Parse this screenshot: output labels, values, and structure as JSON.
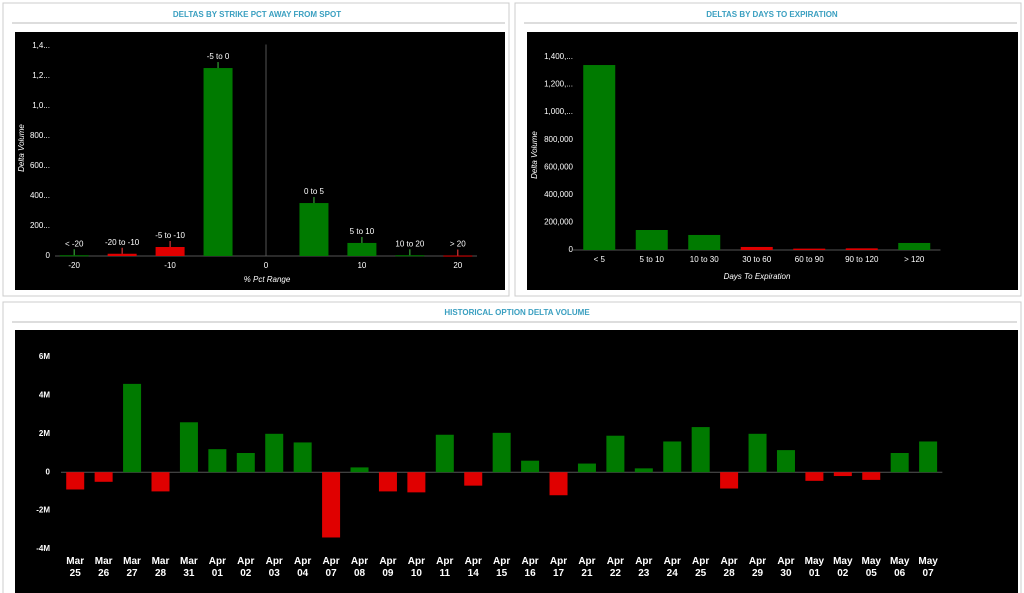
{
  "chart_data": [
    {
      "type": "bar",
      "title": "DELTAS BY STRIKE PCT AWAY FROM SPOT",
      "x_label": "% Pct Range",
      "y_label": "Delta Volume",
      "categories": [
        "< -20",
        "-20 to -10",
        "-5 to -10",
        "-5 to 0",
        "0 to 5",
        "5 to 10",
        "10 to 20",
        "> 20"
      ],
      "x": [
        -20,
        -15,
        -10,
        -5,
        5,
        10,
        15,
        20
      ],
      "values": [
        5000,
        15000,
        60000,
        1253000,
        353000,
        87000,
        5000,
        3000
      ],
      "colors": [
        "#007a00",
        "#e00000",
        "#e00000",
        "#007a00",
        "#007a00",
        "#007a00",
        "#007a00",
        "#e00000"
      ],
      "xlim": [
        -22,
        22
      ],
      "xticks": [
        -20,
        -10,
        0,
        10,
        20
      ],
      "ylim": [
        0,
        1450000
      ],
      "yticks": [
        0,
        {
          "value": 200000,
          "label": "200..."
        },
        {
          "value": 400000,
          "label": "400..."
        },
        {
          "value": 600000,
          "label": "600..."
        },
        {
          "value": 800000,
          "label": "800..."
        },
        {
          "value": 1000000,
          "label": "1,0..."
        },
        {
          "value": 1200000,
          "label": "1,2..."
        },
        {
          "value": 1400000,
          "label": "1,4..."
        }
      ]
    },
    {
      "type": "bar",
      "title": "DELTAS BY DAYS TO EXPIRATION",
      "x_label": "Days To Expiration",
      "y_label": "Delta Volume",
      "categories": [
        "< 5",
        "5 to 10",
        "10 to 30",
        "30 to 60",
        "60 to 90",
        "90 to 120",
        "> 120"
      ],
      "values": [
        1341000,
        145000,
        109000,
        22000,
        10000,
        12000,
        51000
      ],
      "colors": [
        "#007a00",
        "#007a00",
        "#007a00",
        "#e00000",
        "#e00000",
        "#e00000",
        "#007a00"
      ],
      "ylim": [
        0,
        1450000
      ],
      "yticks": [
        0,
        {
          "value": 200000,
          "label": "200,000"
        },
        {
          "value": 400000,
          "label": "400,000"
        },
        {
          "value": 600000,
          "label": "600,000"
        },
        {
          "value": 800000,
          "label": "800,000"
        },
        {
          "value": 1000000,
          "label": "1,000,..."
        },
        {
          "value": 1200000,
          "label": "1,200,..."
        },
        {
          "value": 1400000,
          "label": "1,400,..."
        }
      ]
    },
    {
      "type": "bar",
      "title": "HISTORICAL OPTION DELTA VOLUME",
      "categories": [
        "Mar 25",
        "Mar 26",
        "Mar 27",
        "Mar 28",
        "Mar 31",
        "Apr 01",
        "Apr 02",
        "Apr 03",
        "Apr 04",
        "Apr 07",
        "Apr 08",
        "Apr 09",
        "Apr 10",
        "Apr 11",
        "Apr 14",
        "Apr 15",
        "Apr 16",
        "Apr 17",
        "Apr 21",
        "Apr 22",
        "Apr 23",
        "Apr 24",
        "Apr 25",
        "Apr 28",
        "Apr 29",
        "Apr 30",
        "May 01",
        "May 02",
        "May 05",
        "May 06",
        "May 07"
      ],
      "values": [
        -900000,
        -500000,
        4600000,
        -1000000,
        2600000,
        1200000,
        1000000,
        2000000,
        1550000,
        -3400000,
        250000,
        -1000000,
        -1050000,
        1950000,
        -700000,
        2050000,
        600000,
        -1200000,
        450000,
        1900000,
        200000,
        1600000,
        2350000,
        -850000,
        2000000,
        1150000,
        -450000,
        -200000,
        -400000,
        1000000,
        1600000
      ],
      "positive_color": "#007a00",
      "negative_color": "#e00000",
      "ylim": [
        -4000000,
        6000000
      ],
      "yticks": [
        {
          "value": -4000000,
          "label": "-4M"
        },
        {
          "value": -2000000,
          "label": "-2M"
        },
        0,
        {
          "value": 2000000,
          "label": "2M"
        },
        {
          "value": 4000000,
          "label": "4M"
        },
        {
          "value": 6000000,
          "label": "6M"
        }
      ]
    }
  ]
}
